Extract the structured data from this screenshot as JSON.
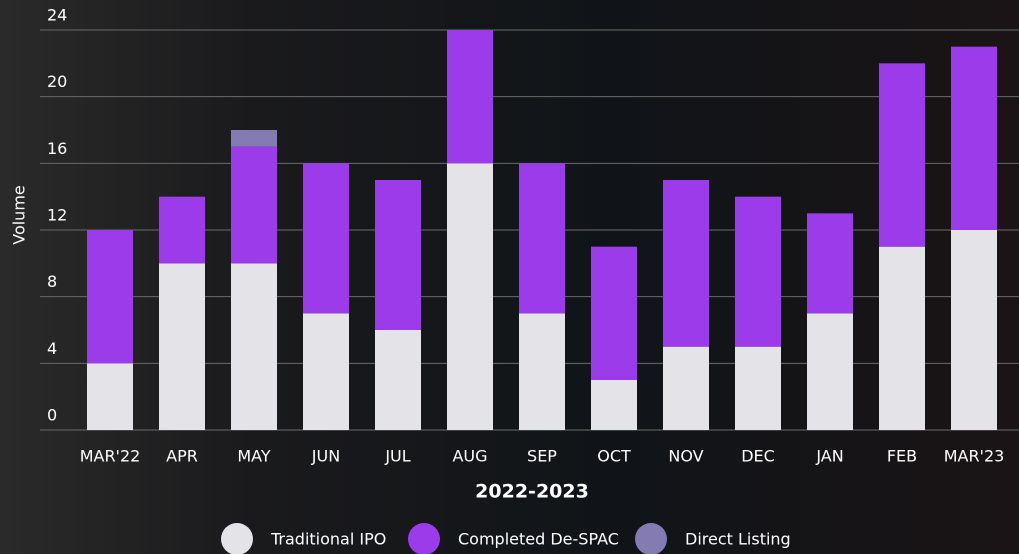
{
  "chart_data": {
    "type": "stacked-bar",
    "x_label": "2022-2023",
    "y_label": "Volume",
    "categories": [
      "MAR'22",
      "APR",
      "MAY",
      "JUN",
      "JUL",
      "AUG",
      "SEP",
      "OCT",
      "NOV",
      "DEC",
      "JAN",
      "FEB",
      "MAR'23"
    ],
    "series": [
      {
        "name": "Traditional IPO",
        "color": "#e4e4e8",
        "values": [
          4,
          10,
          10,
          7,
          6,
          16,
          7,
          3,
          5,
          5,
          7,
          11,
          12
        ]
      },
      {
        "name": "Completed De-SPAC",
        "color": "#9b3bea",
        "values": [
          8,
          4,
          7,
          9,
          9,
          8,
          9,
          8,
          10,
          9,
          6,
          11,
          11
        ]
      },
      {
        "name": "Direct Listing",
        "color": "#857bb3",
        "values": [
          0,
          0,
          1,
          0,
          0,
          0,
          0,
          0,
          0,
          0,
          0,
          0,
          0
        ]
      }
    ],
    "ylim": [
      0,
      24
    ],
    "yticks": [
      0,
      4,
      8,
      12,
      16,
      20,
      24
    ],
    "grid": true,
    "legend": "bottom"
  }
}
